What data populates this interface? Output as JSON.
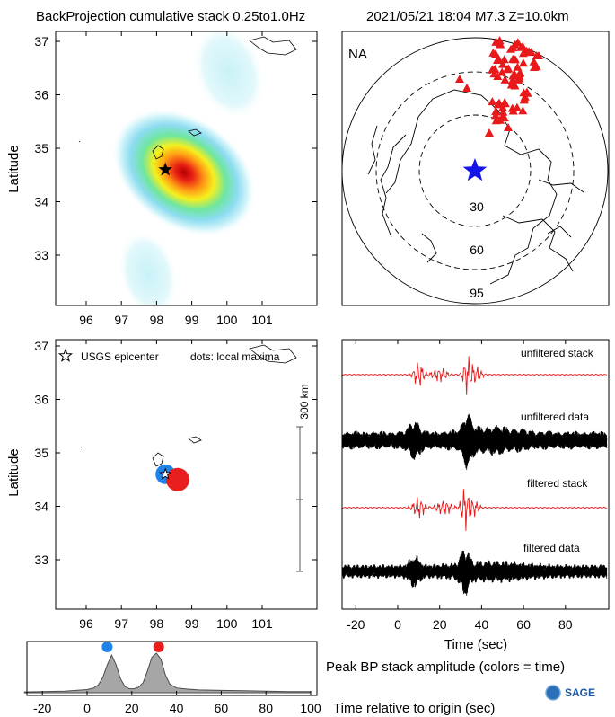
{
  "header": {
    "title": "BackProjection cumulative stack 0.25to1.0Hz",
    "event": "2021/05/21 18:04   M7.3   Z=10.0km"
  },
  "map_axes": {
    "ylabel": "Latitude",
    "lon_ticks": [
      "96",
      "97",
      "98",
      "99",
      "100",
      "101"
    ],
    "lat_ticks": [
      "37",
      "36",
      "35",
      "34",
      "33"
    ]
  },
  "polar_map": {
    "region_label": "NA",
    "ring_labels": [
      "30",
      "60",
      "95"
    ],
    "epicenter_marker": "blue-star",
    "station_marker": "red-triangle",
    "colors": {
      "stations": "#e8191a",
      "epicenter": "#1414e6"
    }
  },
  "maxima_map": {
    "legend_epicenter": "USGS epicenter",
    "legend_dots": "dots: local maxima",
    "scale_label": "300 km",
    "epicenter": {
      "lon": 98.25,
      "lat": 34.6
    },
    "maxima": [
      {
        "lon": 98.25,
        "lat": 34.6,
        "color": "#1e82e6"
      },
      {
        "lon": 98.6,
        "lat": 34.5,
        "color": "#e81e1e"
      }
    ]
  },
  "traces": {
    "labels": [
      "unfiltered stack",
      "unfiltered data",
      "filtered stack",
      "filtered data"
    ],
    "xlabel": "Time (sec)",
    "x_ticks": [
      "-20",
      "0",
      "20",
      "40",
      "60",
      "80"
    ],
    "colors": {
      "stack": "#e41a1a",
      "data": "#000000"
    }
  },
  "bottom": {
    "caption": "Peak BP stack amplitude (colors = time)",
    "xlabel": "Time relative to origin (sec)",
    "x_ticks": [
      "-20",
      "0",
      "20",
      "40",
      "60",
      "80",
      "100"
    ],
    "logo_text": "SAGE"
  },
  "chart_data": {
    "type": "area",
    "title": "",
    "xlabel": "Time relative to origin (sec)",
    "ylabel": "",
    "xlim": [
      -28,
      100
    ],
    "x": [
      -28,
      -20,
      -10,
      -5,
      0,
      3,
      5,
      7,
      9,
      11,
      13,
      15,
      17,
      19,
      21,
      23,
      25,
      27,
      29,
      31,
      33,
      35,
      37,
      40,
      45,
      50,
      60,
      70,
      80,
      90,
      100
    ],
    "values": [
      0.02,
      0.03,
      0.04,
      0.06,
      0.08,
      0.12,
      0.2,
      0.38,
      0.7,
      0.95,
      0.7,
      0.35,
      0.15,
      0.1,
      0.1,
      0.14,
      0.25,
      0.55,
      0.9,
      1.0,
      0.85,
      0.45,
      0.22,
      0.12,
      0.09,
      0.07,
      0.06,
      0.05,
      0.04,
      0.03,
      0.03
    ],
    "peaks": [
      {
        "x": 9,
        "color": "#1e82e6"
      },
      {
        "x": 32,
        "color": "#e81e1e"
      }
    ]
  }
}
